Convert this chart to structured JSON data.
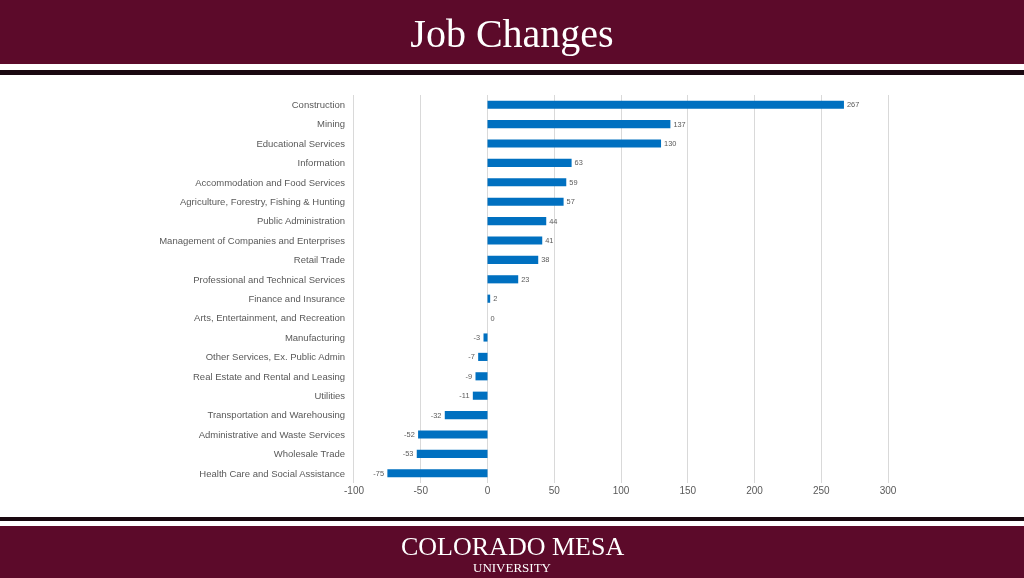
{
  "chart_data": {
    "type": "bar",
    "orientation": "horizontal",
    "title": "Job Changes",
    "categories": [
      "Construction",
      "Mining",
      "Educational Services",
      "Information",
      "Accommodation and Food Services",
      "Agriculture, Forestry, Fishing & Hunting",
      "Public Administration",
      "Management of Companies and Enterprises",
      "Retail Trade",
      "Professional and Technical Services",
      "Finance and Insurance",
      "Arts, Entertainment, and Recreation",
      "Manufacturing",
      "Other Services, Ex. Public Admin",
      "Real Estate and Rental and Leasing",
      "Utilities",
      "Transportation and Warehousing",
      "Administrative and Waste Services",
      "Wholesale Trade",
      "Health Care and Social Assistance"
    ],
    "values": [
      267,
      137,
      130,
      63,
      59,
      57,
      44,
      41,
      38,
      23,
      2,
      0,
      -3,
      -7,
      -9,
      -11,
      -32,
      -52,
      -53,
      -75
    ],
    "color": "#0070c0",
    "xlim": [
      -100,
      300
    ],
    "xticks": [
      -100,
      -50,
      0,
      50,
      100,
      150,
      200,
      250,
      300
    ],
    "grid": "x",
    "data_labels": true,
    "annotations": [
      "COLORADO MESA",
      "UNIVERSITY"
    ]
  }
}
